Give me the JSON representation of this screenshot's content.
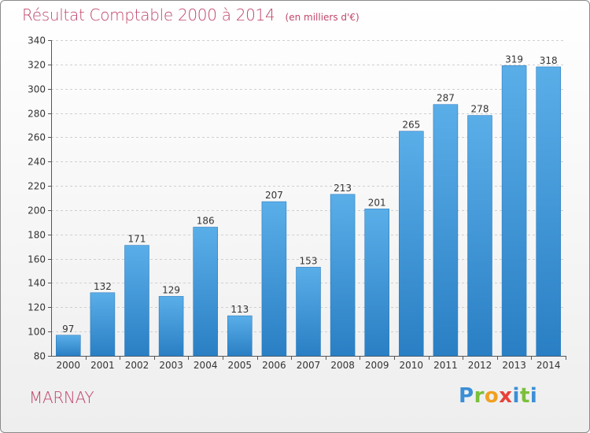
{
  "chart_data": {
    "type": "bar",
    "title": "Résultat Comptable 2000 à 2014",
    "unit_note": "(en milliers d'€)",
    "categories": [
      "2000",
      "2001",
      "2002",
      "2003",
      "2004",
      "2005",
      "2006",
      "2007",
      "2008",
      "2009",
      "2010",
      "2011",
      "2012",
      "2013",
      "2014"
    ],
    "values": [
      97,
      132,
      171,
      129,
      186,
      113,
      207,
      153,
      213,
      201,
      265,
      287,
      278,
      319,
      318
    ],
    "ylim": [
      80,
      340
    ],
    "yticks": [
      80,
      100,
      120,
      140,
      160,
      180,
      200,
      220,
      240,
      260,
      280,
      300,
      320,
      340
    ],
    "grid": true,
    "colors": {
      "bar_light": "#5aaee8",
      "bar_dark": "#2a7fc4",
      "title": "#c0476b"
    }
  },
  "location": "MARNAY",
  "brand": {
    "letters": [
      "P",
      "r",
      "o",
      "x",
      "i",
      "t",
      "i"
    ],
    "colors": [
      "#3a8fd6",
      "#7bbf3a",
      "#f0a020",
      "#e8423a",
      "#3a8fd6",
      "#7bbf3a",
      "#3a8fd6"
    ]
  }
}
